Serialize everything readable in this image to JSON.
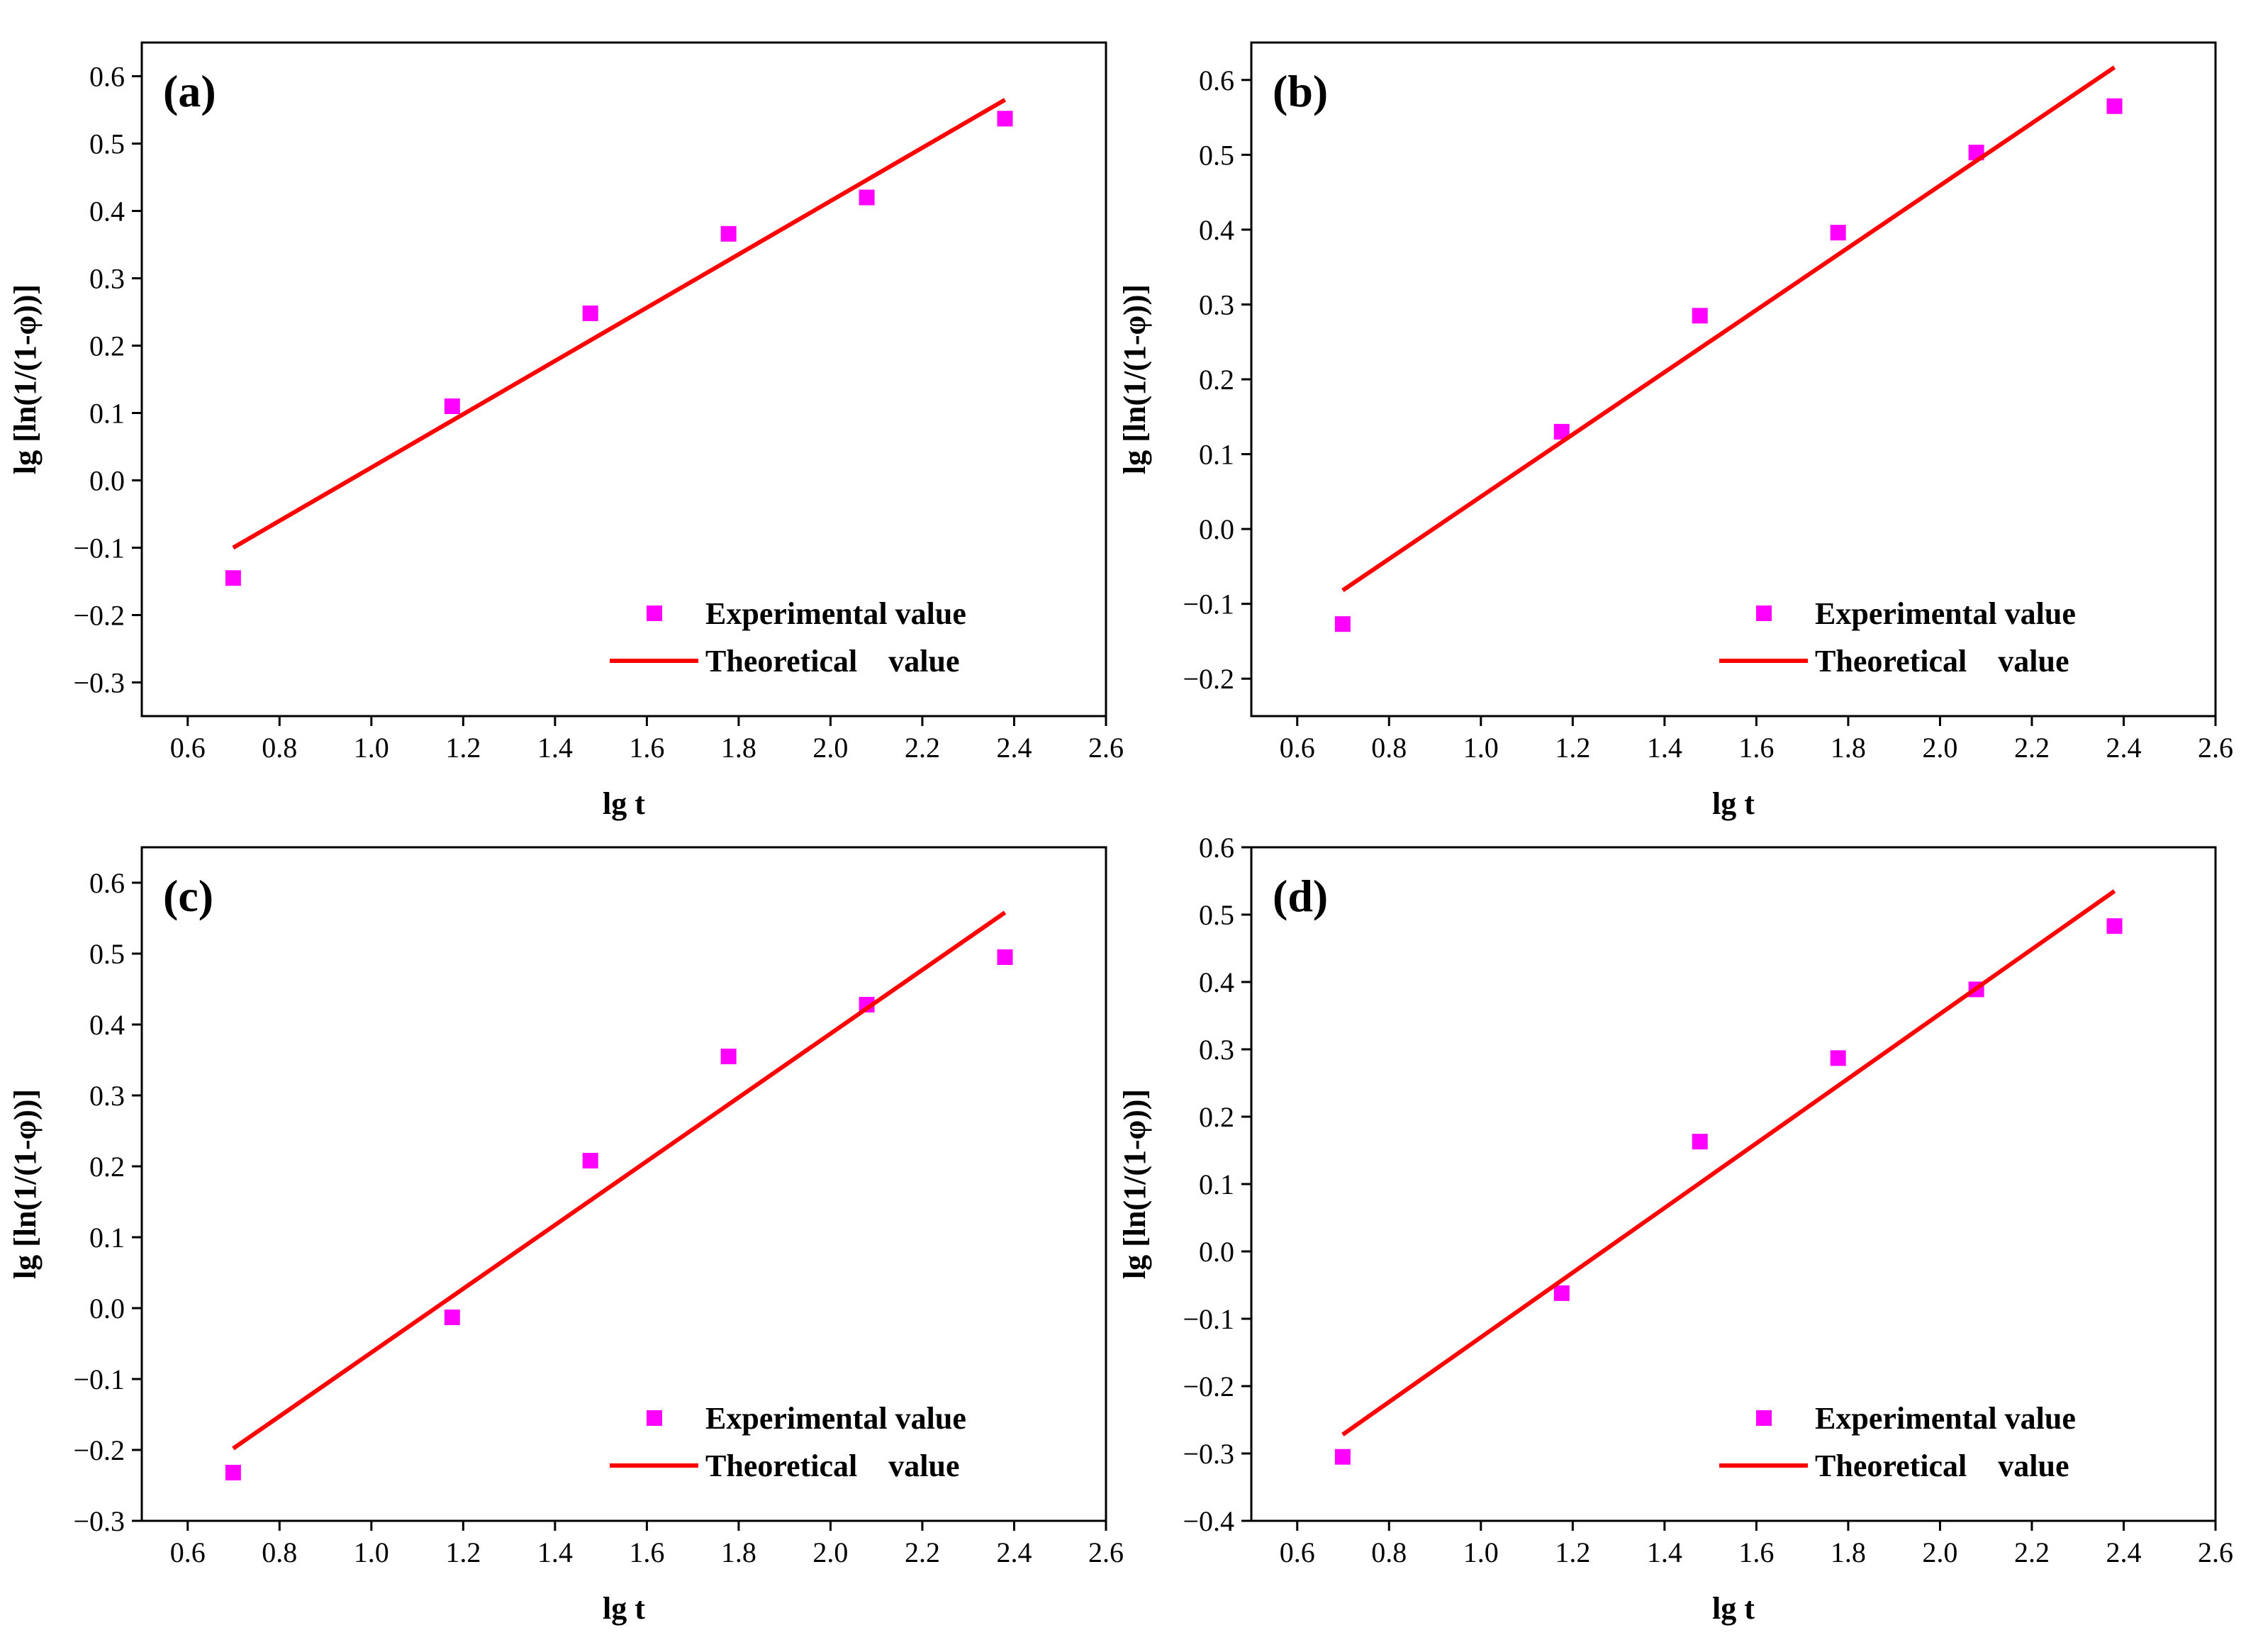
{
  "chart_data": [
    {
      "type": "scatter",
      "panel_label": "(a)",
      "xlabel": "lg t",
      "ylabel": "lg [ln(1/(1-φ))]",
      "xlim": [
        0.5,
        2.6
      ],
      "ylim": [
        -0.35,
        0.65
      ],
      "xticks": [
        "0.6",
        "0.8",
        "1.0",
        "1.2",
        "1.4",
        "1.6",
        "1.8",
        "2.0",
        "2.2",
        "2.4",
        "2.6"
      ],
      "yticks": [
        "-0.3",
        "-0.2",
        "-0.1",
        "0.0",
        "0.1",
        "0.2",
        "0.3",
        "0.4",
        "0.5",
        "0.6"
      ],
      "series": [
        {
          "name": "Experimental value",
          "kind": "scatter",
          "color": "#ff00ff",
          "x": [
            0.699,
            1.176,
            1.477,
            1.778,
            2.079,
            2.38
          ],
          "y": [
            -0.145,
            0.11,
            0.248,
            0.366,
            0.42,
            0.537
          ]
        },
        {
          "name": "Theoretical    value",
          "kind": "line",
          "color": "#ff0000",
          "x": [
            0.699,
            2.38
          ],
          "y": [
            -0.1,
            0.565
          ]
        }
      ],
      "legend": "bottom-right"
    },
    {
      "type": "scatter",
      "panel_label": "(b)",
      "xlabel": "lg t",
      "ylabel": "lg [ln(1/(1-φ))]",
      "xlim": [
        0.5,
        2.6
      ],
      "ylim": [
        -0.25,
        0.65
      ],
      "xticks": [
        "0.6",
        "0.8",
        "1.0",
        "1.2",
        "1.4",
        "1.6",
        "1.8",
        "2.0",
        "2.2",
        "2.4",
        "2.6"
      ],
      "yticks": [
        "-0.2",
        "-0.1",
        "0.0",
        "0.1",
        "0.2",
        "0.3",
        "0.4",
        "0.5",
        "0.6"
      ],
      "series": [
        {
          "name": "Experimental value",
          "kind": "scatter",
          "color": "#ff00ff",
          "x": [
            0.699,
            1.176,
            1.477,
            1.778,
            2.079,
            2.38
          ],
          "y": [
            -0.127,
            0.13,
            0.285,
            0.396,
            0.503,
            0.565
          ]
        },
        {
          "name": "Theoretical    value",
          "kind": "line",
          "color": "#ff0000",
          "x": [
            0.699,
            2.38
          ],
          "y": [
            -0.082,
            0.617
          ]
        }
      ],
      "legend": "bottom-right"
    },
    {
      "type": "scatter",
      "panel_label": "(c)",
      "xlabel": "lg t",
      "ylabel": "lg [ln(1/(1-φ))]",
      "xlim": [
        0.5,
        2.6
      ],
      "ylim": [
        -0.3,
        0.65
      ],
      "xticks": [
        "0.6",
        "0.8",
        "1.0",
        "1.2",
        "1.4",
        "1.6",
        "1.8",
        "2.0",
        "2.2",
        "2.4",
        "2.6"
      ],
      "yticks": [
        "-0.3",
        "-0.2",
        "-0.1",
        "0.0",
        "0.1",
        "0.2",
        "0.3",
        "0.4",
        "0.5",
        "0.6"
      ],
      "series": [
        {
          "name": "Experimental value",
          "kind": "scatter",
          "color": "#ff00ff",
          "x": [
            0.699,
            1.176,
            1.477,
            1.778,
            2.079,
            2.38
          ],
          "y": [
            -0.232,
            -0.013,
            0.208,
            0.355,
            0.428,
            0.495
          ]
        },
        {
          "name": "Theoretical    value",
          "kind": "line",
          "color": "#ff0000",
          "x": [
            0.699,
            2.38
          ],
          "y": [
            -0.198,
            0.558
          ]
        }
      ],
      "legend": "bottom-right"
    },
    {
      "type": "scatter",
      "panel_label": "(d)",
      "xlabel": "lg t",
      "ylabel": "lg [ln(1/(1-φ))]",
      "xlim": [
        0.5,
        2.6
      ],
      "ylim": [
        -0.4,
        0.6
      ],
      "xticks": [
        "0.6",
        "0.8",
        "1.0",
        "1.2",
        "1.4",
        "1.6",
        "1.8",
        "2.0",
        "2.2",
        "2.4",
        "2.6"
      ],
      "yticks": [
        "-0.4",
        "-0.3",
        "-0.2",
        "-0.1",
        "0.0",
        "0.1",
        "0.2",
        "0.3",
        "0.4",
        "0.5",
        "0.6"
      ],
      "series": [
        {
          "name": "Experimental value",
          "kind": "scatter",
          "color": "#ff00ff",
          "x": [
            0.699,
            1.176,
            1.477,
            1.778,
            2.079,
            2.38
          ],
          "y": [
            -0.305,
            -0.062,
            0.163,
            0.287,
            0.389,
            0.483
          ]
        },
        {
          "name": "Theoretical    value",
          "kind": "line",
          "color": "#ff0000",
          "x": [
            0.699,
            2.38
          ],
          "y": [
            -0.272,
            0.535
          ]
        }
      ],
      "legend": "bottom-right"
    }
  ]
}
